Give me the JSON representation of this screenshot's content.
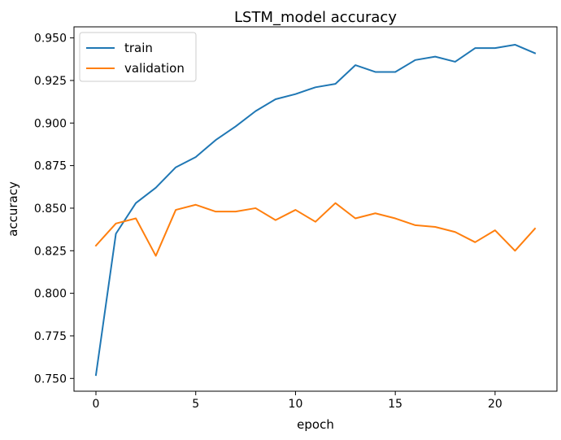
{
  "chart_data": {
    "type": "line",
    "title": "LSTM_model accuracy",
    "xlabel": "epoch",
    "ylabel": "accuracy",
    "xlim": [
      -1.1,
      23.1
    ],
    "ylim": [
      0.7425,
      0.9565
    ],
    "xticks": [
      0,
      5,
      10,
      15,
      20
    ],
    "xtick_labels": [
      "0",
      "5",
      "10",
      "15",
      "20"
    ],
    "yticks": [
      0.75,
      0.775,
      0.8,
      0.825,
      0.85,
      0.875,
      0.9,
      0.925,
      0.95
    ],
    "ytick_labels": [
      "0.750",
      "0.775",
      "0.800",
      "0.825",
      "0.850",
      "0.875",
      "0.900",
      "0.925",
      "0.950"
    ],
    "grid": false,
    "legend_position": "top-left",
    "x": [
      0,
      1,
      2,
      3,
      4,
      5,
      6,
      7,
      8,
      9,
      10,
      11,
      12,
      13,
      14,
      15,
      16,
      17,
      18,
      19,
      20,
      21,
      22
    ],
    "series": [
      {
        "name": "train",
        "color": "#1f77b4",
        "values": [
          0.752,
          0.835,
          0.853,
          0.862,
          0.874,
          0.88,
          0.89,
          0.898,
          0.907,
          0.914,
          0.917,
          0.921,
          0.923,
          0.934,
          0.93,
          0.93,
          0.937,
          0.939,
          0.936,
          0.944,
          0.944,
          0.946,
          0.941
        ]
      },
      {
        "name": "validation",
        "color": "#ff7f0e",
        "values": [
          0.828,
          0.841,
          0.844,
          0.822,
          0.849,
          0.852,
          0.848,
          0.848,
          0.85,
          0.843,
          0.849,
          0.842,
          0.853,
          0.844,
          0.847,
          0.844,
          0.84,
          0.839,
          0.836,
          0.83,
          0.837,
          0.825,
          0.838
        ]
      }
    ]
  }
}
